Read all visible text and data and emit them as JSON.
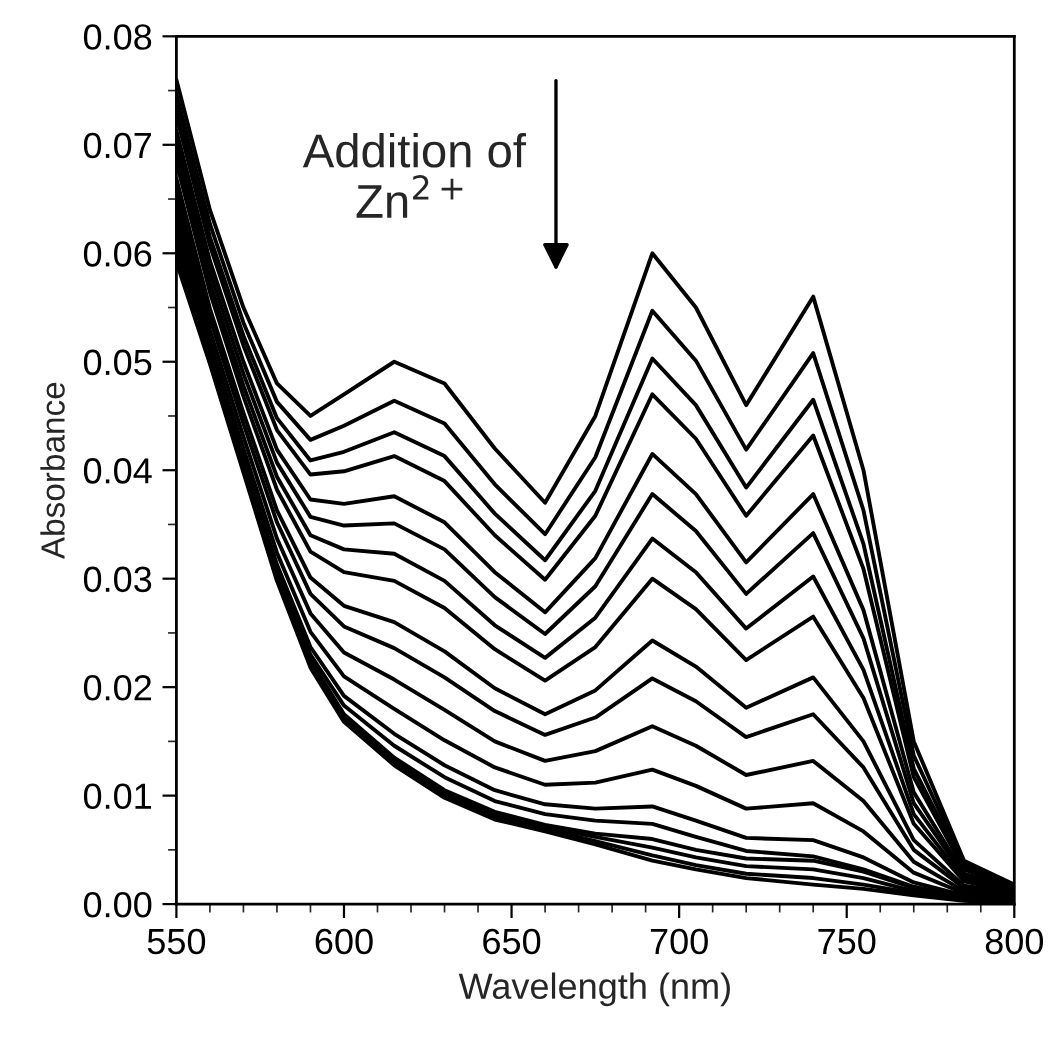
{
  "chart_data": {
    "type": "line",
    "xlabel": "Wavelength (nm)",
    "ylabel": "Absorbance",
    "annotations": [
      "Addition of\nZn$^{2+}$"
    ],
    "x": [
      550,
      560,
      570,
      580,
      590,
      600,
      615,
      630,
      645,
      660,
      675,
      692,
      705,
      720,
      740,
      755,
      770,
      785,
      800
    ],
    "xlim": [
      550,
      800
    ],
    "xticks": [
      550,
      600,
      650,
      700,
      750,
      800
    ],
    "ylim": [
      0,
      0.08
    ],
    "yticks": [
      {
        "value": 0,
        "label": "0.00"
      },
      {
        "value": 0.01,
        "label": "0.01"
      },
      {
        "value": 0.02,
        "label": "0.02"
      },
      {
        "value": 0.03,
        "label": "0.03"
      },
      {
        "value": 0.04,
        "label": "0.04"
      },
      {
        "value": 0.05,
        "label": "0.05"
      },
      {
        "value": 0.06,
        "label": "0.06"
      },
      {
        "value": 0.07,
        "label": "0.07"
      },
      {
        "value": 0.08,
        "label": "0.08"
      }
    ],
    "grid": false,
    "legend": false,
    "marker": "none",
    "line_style": "solid",
    "series": [
      {
        "color": "#000000",
        "values": [
          0.076,
          0.064,
          0.055,
          0.048,
          0.045,
          0.047,
          0.05,
          0.048,
          0.042,
          0.037,
          0.045,
          0.06,
          0.055,
          0.046,
          0.056,
          0.04,
          0.015,
          0.004,
          0.0018
        ]
      },
      {
        "color": "#000000",
        "values": [
          0.0747,
          0.0627,
          0.0536,
          0.0463,
          0.0428,
          0.0441,
          0.0464,
          0.0443,
          0.0387,
          0.0341,
          0.0412,
          0.0547,
          0.0501,
          0.0419,
          0.0508,
          0.0363,
          0.0137,
          0.0037,
          0.0017
        ]
      },
      {
        "color": "#000000",
        "values": [
          0.0735,
          0.0615,
          0.0524,
          0.0448,
          0.0409,
          0.0417,
          0.0435,
          0.0413,
          0.036,
          0.0317,
          0.0381,
          0.0503,
          0.046,
          0.0384,
          0.0465,
          0.0332,
          0.0125,
          0.0034,
          0.0016
        ]
      },
      {
        "color": "#000000",
        "values": [
          0.0727,
          0.0607,
          0.0515,
          0.0437,
          0.0396,
          0.0399,
          0.0413,
          0.039,
          0.034,
          0.0299,
          0.0358,
          0.047,
          0.0429,
          0.0358,
          0.0432,
          0.0309,
          0.0117,
          0.0032,
          0.0015
        ]
      },
      {
        "color": "#000000",
        "values": [
          0.0713,
          0.0593,
          0.05,
          0.0419,
          0.0373,
          0.0369,
          0.0376,
          0.0352,
          0.0306,
          0.0269,
          0.0319,
          0.0415,
          0.0378,
          0.0315,
          0.0378,
          0.0271,
          0.0103,
          0.0028,
          0.0014
        ]
      },
      {
        "color": "#000000",
        "values": [
          0.0703,
          0.0583,
          0.0489,
          0.0407,
          0.0357,
          0.0349,
          0.0351,
          0.0327,
          0.0283,
          0.0249,
          0.0293,
          0.0378,
          0.0344,
          0.0286,
          0.0342,
          0.0245,
          0.0093,
          0.0026,
          0.0013
        ]
      },
      {
        "color": "#000000",
        "values": [
          0.0693,
          0.0573,
          0.0478,
          0.0394,
          0.034,
          0.0327,
          0.0323,
          0.0298,
          0.0257,
          0.0227,
          0.0264,
          0.0337,
          0.0306,
          0.0254,
          0.0302,
          0.0216,
          0.0083,
          0.0023,
          0.0012
        ]
      },
      {
        "color": "#000000",
        "values": [
          0.0684,
          0.0564,
          0.0468,
          0.0382,
          0.0325,
          0.0306,
          0.0298,
          0.0273,
          0.0235,
          0.0206,
          0.0237,
          0.03,
          0.0272,
          0.0225,
          0.0265,
          0.019,
          0.0074,
          0.0021,
          0.0011
        ]
      },
      {
        "color": "#000000",
        "values": [
          0.0669,
          0.0549,
          0.0453,
          0.0363,
          0.0301,
          0.0275,
          0.026,
          0.0233,
          0.0199,
          0.0175,
          0.0197,
          0.0243,
          0.0219,
          0.0181,
          0.0209,
          0.015,
          0.0059,
          0.0017,
          0.001
        ]
      },
      {
        "color": "#000000",
        "values": [
          0.066,
          0.054,
          0.0443,
          0.0352,
          0.0286,
          0.0256,
          0.0236,
          0.0209,
          0.0178,
          0.0156,
          0.0172,
          0.0208,
          0.0187,
          0.0154,
          0.0175,
          0.0126,
          0.005,
          0.0015,
          0.0009
        ]
      },
      {
        "color": "#000000",
        "values": [
          0.0649,
          0.0529,
          0.0431,
          0.0337,
          0.0268,
          0.0232,
          0.0207,
          0.0179,
          0.015,
          0.0132,
          0.0141,
          0.0164,
          0.0146,
          0.0119,
          0.0132,
          0.0095,
          0.0039,
          0.0012,
          0.0008
        ]
      },
      {
        "color": "#000000",
        "values": [
          0.0639,
          0.0519,
          0.042,
          0.0324,
          0.0251,
          0.021,
          0.018,
          0.0151,
          0.0126,
          0.011,
          0.0112,
          0.0124,
          0.0109,
          0.0088,
          0.0093,
          0.0067,
          0.0029,
          0.001,
          0.0007
        ]
      },
      {
        "color": "#000000",
        "values": [
          0.0634,
          0.051,
          0.0411,
          0.0313,
          0.0237,
          0.0192,
          0.0157,
          0.0128,
          0.0105,
          0.0092,
          0.0088,
          0.009,
          0.0077,
          0.0061,
          0.0059,
          0.0043,
          0.002,
          0.0008,
          0.0006
        ]
      },
      {
        "color": "#000000",
        "values": [
          0.0624,
          0.0506,
          0.0407,
          0.0308,
          0.023,
          0.0183,
          0.0146,
          0.0117,
          0.0095,
          0.0083,
          0.0077,
          0.0074,
          0.0062,
          0.0049,
          0.0044,
          0.0032,
          0.0016,
          0.0007,
          0.0005
        ]
      },
      {
        "color": "#000000",
        "values": [
          0.0616,
          0.0505,
          0.0405,
          0.0305,
          0.0225,
          0.0175,
          0.0135,
          0.0105,
          0.0085,
          0.0073,
          0.0065,
          0.006,
          0.005,
          0.0042,
          0.004,
          0.003,
          0.0015,
          0.0006,
          0.0004
        ]
      },
      {
        "color": "#000000",
        "values": [
          0.0608,
          0.0502,
          0.0402,
          0.0302,
          0.0222,
          0.0172,
          0.0132,
          0.0102,
          0.0082,
          0.0071,
          0.0062,
          0.0052,
          0.0043,
          0.0035,
          0.0032,
          0.0024,
          0.0012,
          0.0005,
          0.0003
        ]
      },
      {
        "color": "#000000",
        "values": [
          0.06,
          0.05,
          0.04,
          0.03,
          0.022,
          0.017,
          0.013,
          0.01,
          0.008,
          0.0069,
          0.0058,
          0.0045,
          0.0036,
          0.0028,
          0.0024,
          0.0018,
          0.001,
          0.0004,
          0.0002
        ]
      },
      {
        "color": "#000000",
        "values": [
          0.0592,
          0.0498,
          0.0398,
          0.0298,
          0.0218,
          0.0168,
          0.0128,
          0.0098,
          0.0078,
          0.0067,
          0.0055,
          0.004,
          0.0032,
          0.0024,
          0.0018,
          0.0014,
          0.0008,
          0.0003,
          0.0001
        ]
      }
    ]
  }
}
